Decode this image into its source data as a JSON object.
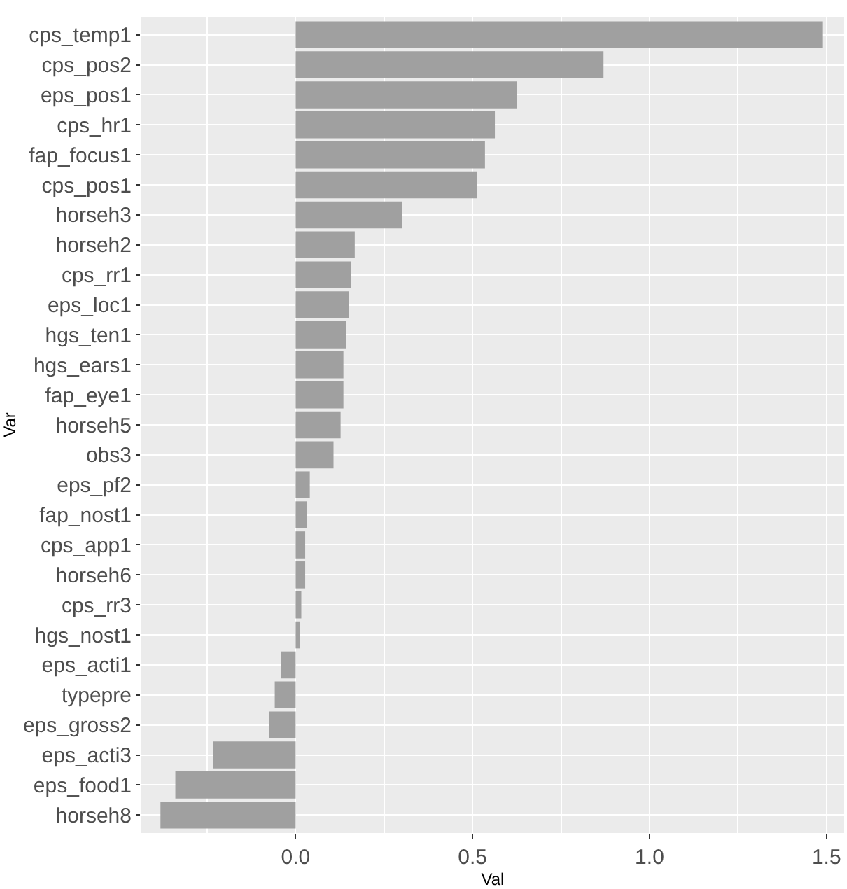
{
  "chart_data": {
    "type": "bar",
    "orientation": "horizontal",
    "xlabel": "Val",
    "ylabel": "Var",
    "categories": [
      "cps_temp1",
      "cps_pos2",
      "eps_pos1",
      "cps_hr1",
      "fap_focus1",
      "cps_pos1",
      "horseh3",
      "horseh2",
      "cps_rr1",
      "eps_loc1",
      "hgs_ten1",
      "hgs_ears1",
      "fap_eye1",
      "horseh5",
      "obs3",
      "eps_pf2",
      "fap_nost1",
      "cps_app1",
      "horseh6",
      "cps_rr3",
      "hgs_nost1",
      "eps_acti1",
      "typepre",
      "eps_gross2",
      "eps_acti3",
      "eps_food1",
      "horseh8"
    ],
    "values": [
      1.49,
      0.87,
      0.625,
      0.563,
      0.535,
      0.513,
      0.3,
      0.167,
      0.156,
      0.151,
      0.143,
      0.135,
      0.135,
      0.127,
      0.107,
      0.04,
      0.032,
      0.027,
      0.027,
      0.016,
      0.012,
      -0.042,
      -0.059,
      -0.076,
      -0.233,
      -0.34,
      -0.382
    ],
    "color": "#a0a0a0",
    "xlim": [
      -0.436,
      1.55
    ],
    "xticks": [
      {
        "value": 0,
        "label": "0.0"
      },
      0.5,
      {
        "value": 1,
        "label": "1.0"
      },
      1.5
    ],
    "grid": true,
    "legend": false
  }
}
